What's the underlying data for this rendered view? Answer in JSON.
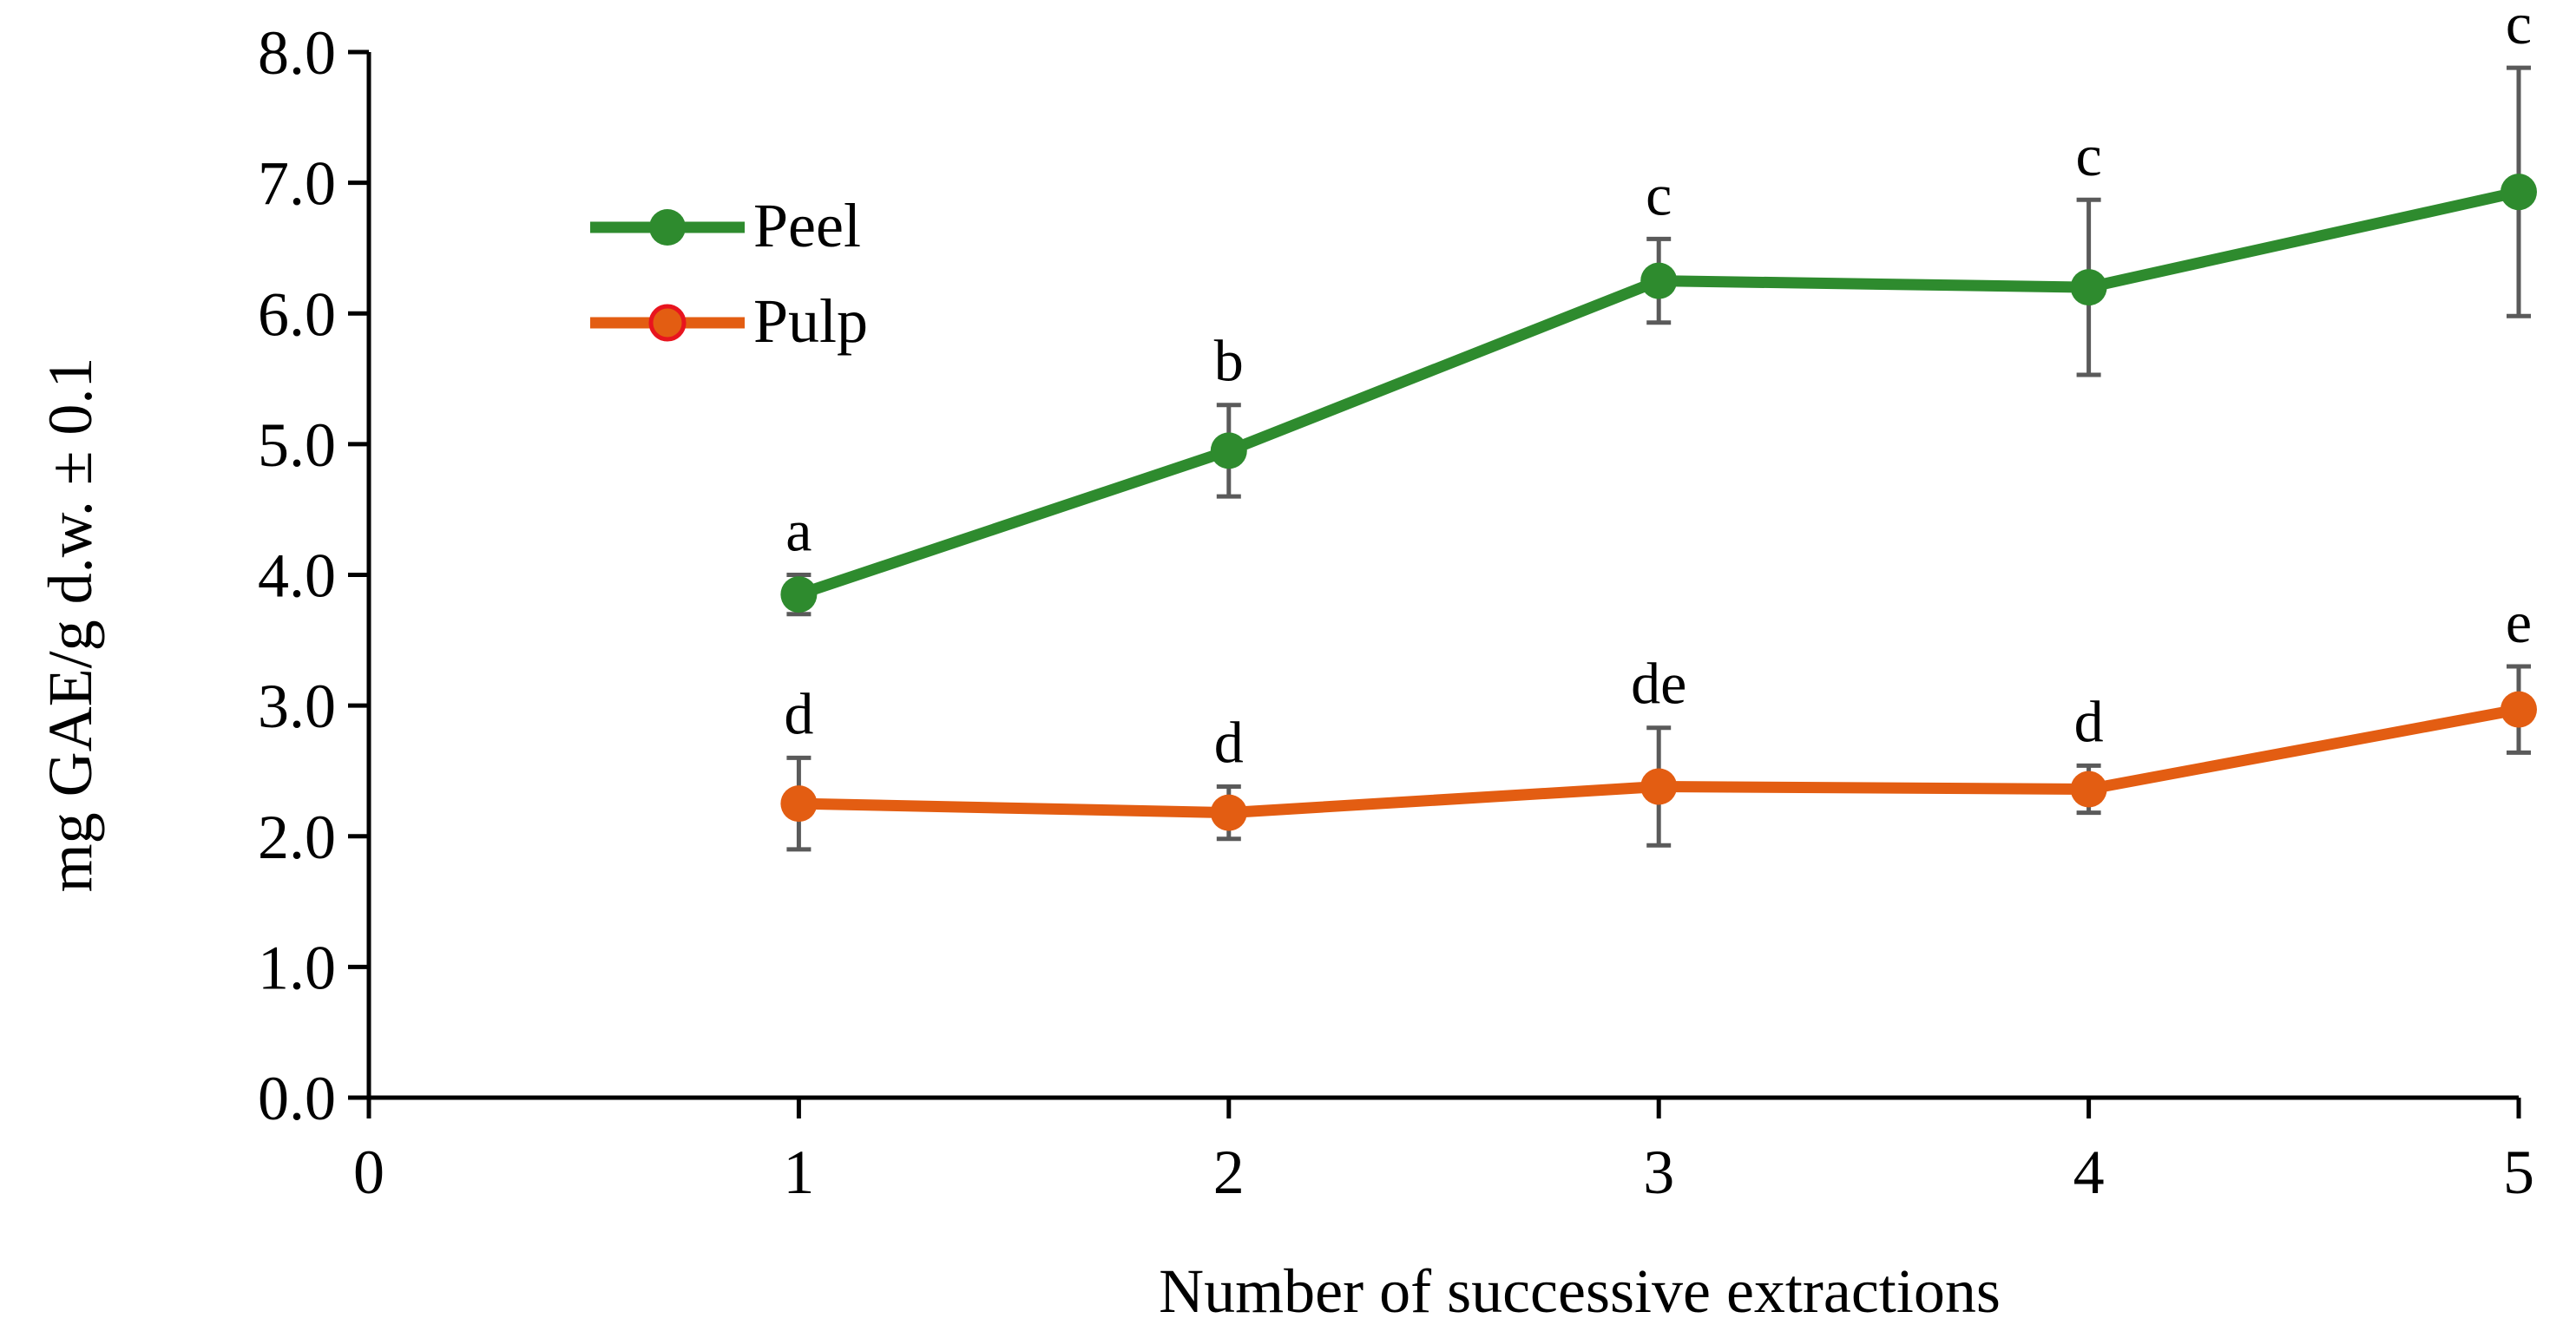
{
  "chart_data": {
    "type": "line",
    "xlabel": "Number of successive extractions",
    "ylabel": "mg GAE/g d.w. ± 0.1",
    "xlim": [
      0,
      5
    ],
    "ylim": [
      0,
      8
    ],
    "x_ticks": [
      "0",
      "1",
      "2",
      "3",
      "4",
      "5"
    ],
    "y_ticks": [
      "0.0",
      "1.0",
      "2.0",
      "3.0",
      "4.0",
      "5.0",
      "6.0",
      "7.0",
      "8.0"
    ],
    "grid": false,
    "legend_position": "top-left",
    "x": [
      1,
      2,
      3,
      4,
      5
    ],
    "series": [
      {
        "name": "Peel",
        "color": "#2e8b2e",
        "marker_color": "#2e8b2e",
        "marker_edge": "#2e8b2e",
        "values": [
          3.85,
          4.95,
          6.25,
          6.2,
          6.93
        ],
        "errors": [
          0.15,
          0.35,
          0.32,
          0.67,
          0.95
        ],
        "labels": [
          "a",
          "b",
          "c",
          "c",
          "c"
        ]
      },
      {
        "name": "Pulp",
        "color": "#e35d12",
        "marker_color": "#e35d12",
        "marker_edge": "#e8141e",
        "values": [
          2.25,
          2.18,
          2.38,
          2.36,
          2.97
        ],
        "errors": [
          0.35,
          0.2,
          0.45,
          0.18,
          0.33
        ],
        "labels": [
          "d",
          "d",
          "de",
          "d",
          "e"
        ]
      }
    ],
    "error_bar_color": "#5a5a5a"
  }
}
